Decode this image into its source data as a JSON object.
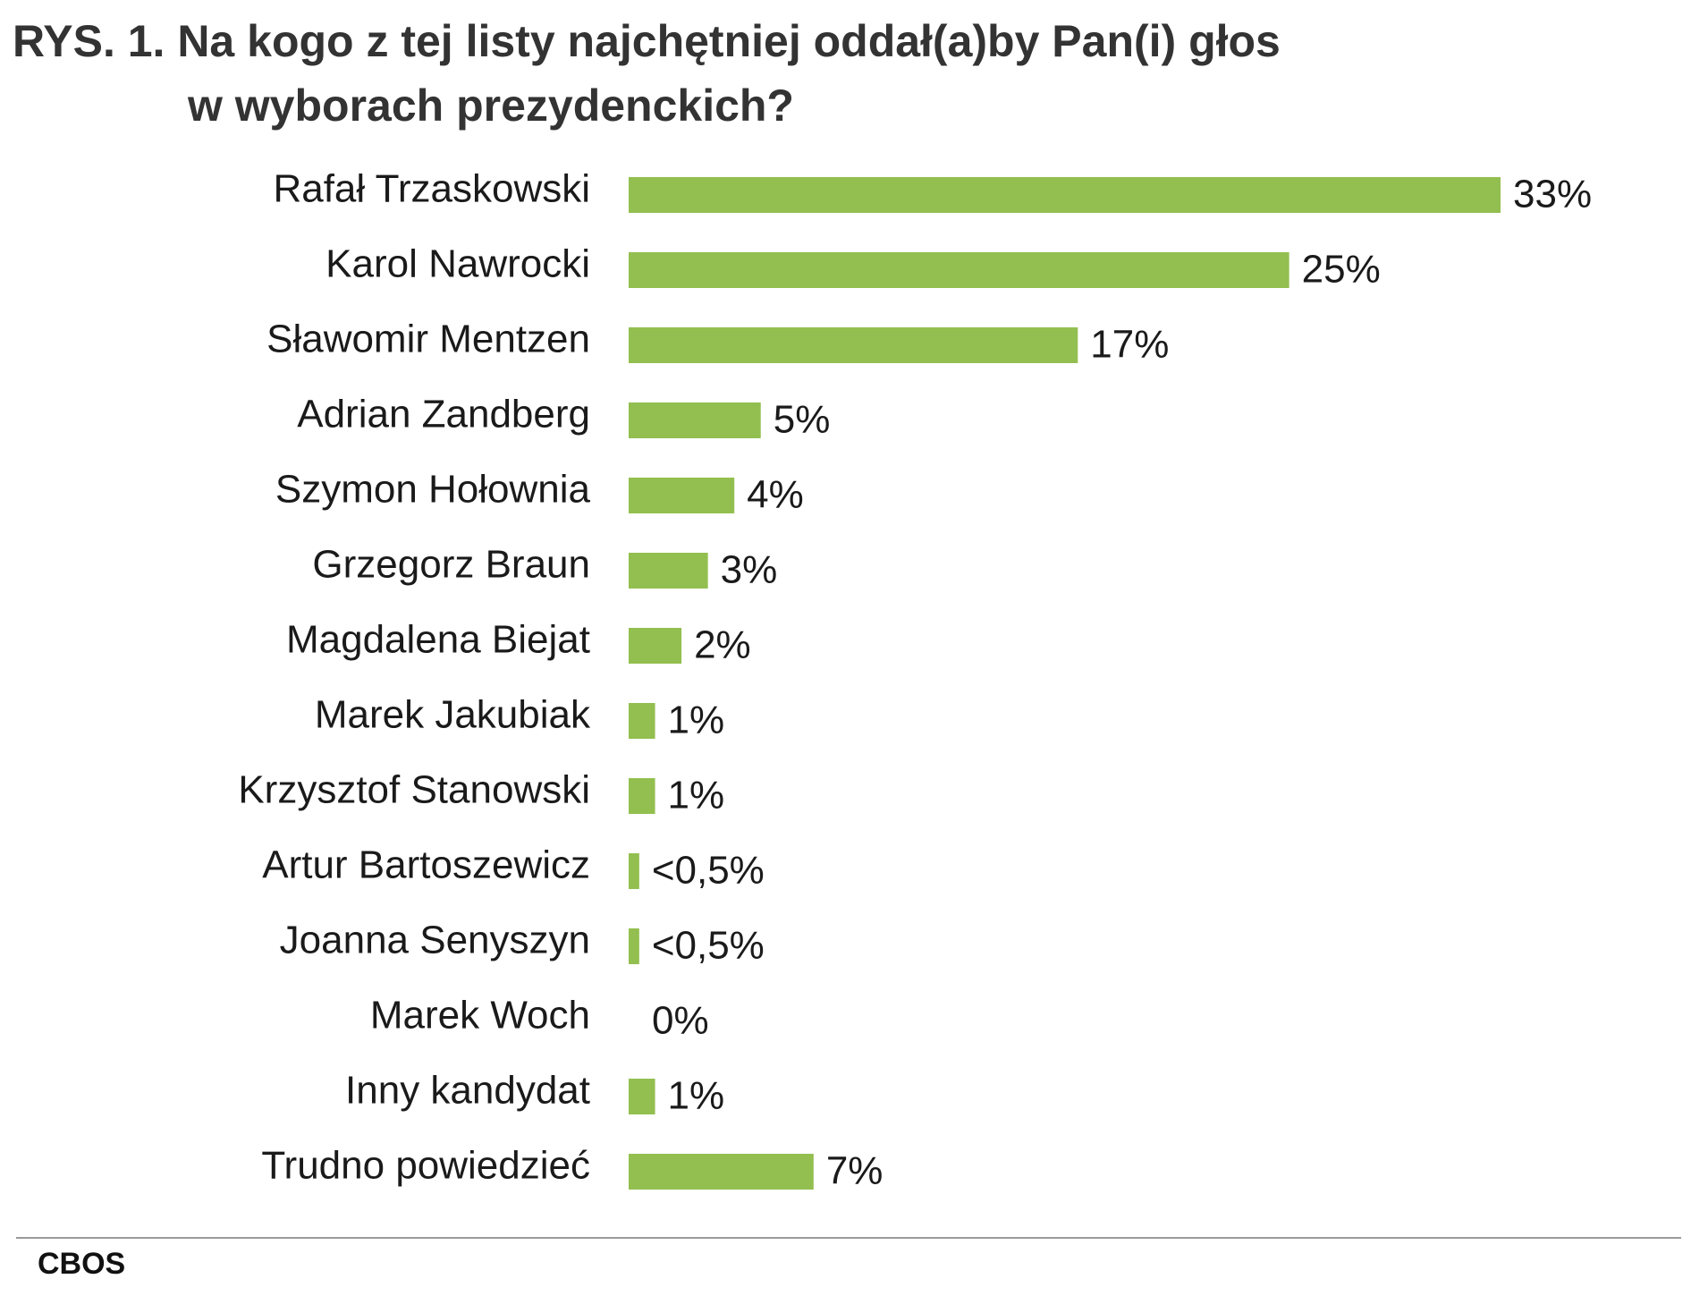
{
  "title": {
    "line1": "RYS. 1. Na kogo z tej listy najchętniej oddał(a)by Pan(i) głos",
    "line2": "w wyborach prezydenckich?"
  },
  "source": "CBOS",
  "colors": {
    "bar": "#92bf4f",
    "rule": "#9a9a9a"
  },
  "chart_data": {
    "type": "bar",
    "orientation": "horizontal",
    "title": "RYS. 1. Na kogo z tej listy najchętniej oddał(a)by Pan(i) głos w wyborach prezydenckich?",
    "unit": "%",
    "grid": false,
    "legend": "none",
    "xlim": [
      0,
      33
    ],
    "categories": [
      "Rafał Trzaskowski",
      "Karol Nawrocki",
      "Sławomir Mentzen",
      "Adrian Zandberg",
      "Szymon Hołownia",
      "Grzegorz Braun",
      "Magdalena Biejat",
      "Marek Jakubiak",
      "Krzysztof Stanowski",
      "Artur Bartoszewicz",
      "Joanna Senyszyn",
      "Marek Woch",
      "Inny kandydat",
      "Trudno powiedzieć"
    ],
    "values": [
      33,
      25,
      17,
      5,
      4,
      3,
      2,
      1,
      1,
      0.4,
      0.4,
      0,
      1,
      7
    ],
    "value_labels": [
      "33%",
      "25%",
      "17%",
      "5%",
      "4%",
      "3%",
      "2%",
      "1%",
      "1%",
      "<0,5%",
      "<0,5%",
      "0%",
      "1%",
      "7%"
    ]
  }
}
